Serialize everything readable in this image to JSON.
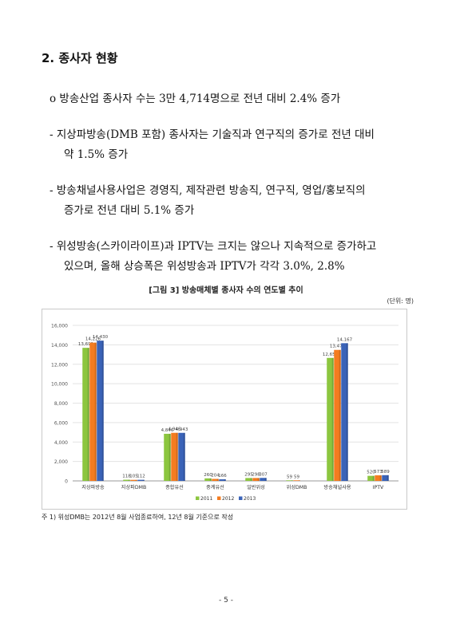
{
  "heading": "2. 종사자 현황",
  "bullet": "o  방송산업 종사자 수는 3만 4,714명으로 전년 대비 2.4% 증가",
  "items": [
    {
      "line1": "-  지상파방송(DMB 포함) 종사자는 기술직과 연구직의 증가로 전년 대비",
      "line2": "약 1.5% 증가"
    },
    {
      "line1": "-  방송채널사용사업은 경영직, 제작관련 방송직, 연구직, 영업/홍보직의",
      "line2": "증가로 전년 대비 5.1% 증가"
    },
    {
      "line1": "-  위성방송(스카이라이프)과 IPTV는 크지는 않으나 지속적으로 증가하고",
      "line2": "있으며, 올해 상승폭은 위성방송과 IPTV가 각각 3.0%, 2.8%"
    }
  ],
  "figure_title": "[그림 3] 방송매체별 종사자 수의 연도별 추이",
  "unit": "(단위: 명)",
  "note": "주 1) 위성DMB는 2012년 8월 사업종료하여, 12년 8월 기준으로 작성",
  "page_number": "- 5 -",
  "colors": {
    "2011": "#8cc63f",
    "2012": "#f47c20",
    "2013": "#3a63b8"
  },
  "chart_data": {
    "type": "bar",
    "categories": [
      "지상파방송",
      "지상파DMB",
      "종합유선",
      "중계유선",
      "일반위성",
      "위성DMB",
      "방송채널사용",
      "IPTV"
    ],
    "series": [
      {
        "name": "2011",
        "values": [
          13691,
          118,
          4846,
          260,
          295,
          59,
          12654,
          520
        ]
      },
      {
        "name": "2012",
        "values": [
          14226,
          105,
          4946,
          204,
          298,
          59,
          13477,
          573
        ]
      },
      {
        "name": "2013",
        "values": [
          14430,
          112,
          4943,
          166,
          307,
          null,
          14167,
          589
        ]
      }
    ],
    "data_labels": [
      [
        "13,691",
        "118",
        "4,846",
        "260",
        "295",
        "59",
        "12,654",
        "520"
      ],
      [
        "14,226",
        "105",
        "4,946",
        "204",
        "298",
        "59",
        "13,477",
        "573"
      ],
      [
        "14,430",
        "112",
        "4,943",
        "166",
        "307",
        "",
        "14,167",
        "589"
      ]
    ],
    "y_ticks": [
      "0",
      "2,000",
      "4,000",
      "6,000",
      "8,000",
      "10,000",
      "12,000",
      "14,000",
      "16,000"
    ],
    "ylim": [
      0,
      16000
    ],
    "legend_position": "bottom",
    "grid": true
  }
}
